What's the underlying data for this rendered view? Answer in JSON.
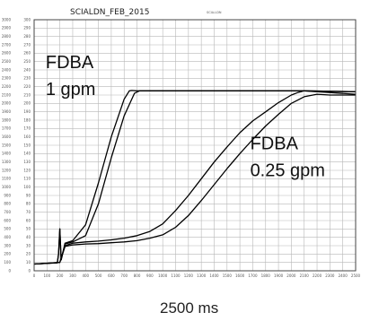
{
  "chart_data": {
    "type": "line",
    "title": "SCIALDN_FEB_2015",
    "legend_text": "SCIA-LDN",
    "xlim": [
      0,
      2500
    ],
    "ylim": [
      0,
      3000
    ],
    "x_ticks": [
      0,
      100,
      200,
      300,
      400,
      500,
      600,
      700,
      800,
      900,
      1000,
      1100,
      1200,
      1300,
      1400,
      1500,
      1600,
      1700,
      1800,
      1900,
      2000,
      2100,
      2200,
      2300,
      2400,
      2500
    ],
    "x_tick_labels": [
      "0",
      "100",
      "200",
      "300",
      "400",
      "500",
      "600",
      "700",
      "800",
      "900",
      "1000",
      "1100",
      "1200",
      "1300",
      "1400",
      "1500",
      "1600",
      "1700",
      "1800",
      "1900",
      "2000",
      "2100",
      "2200",
      "2300",
      "2400",
      "2500"
    ],
    "y_ticks": [
      0,
      100,
      200,
      300,
      400,
      500,
      600,
      700,
      800,
      900,
      1000,
      1100,
      1200,
      1300,
      1400,
      1500,
      1600,
      1700,
      1800,
      1900,
      2000,
      2100,
      2200,
      2300,
      2400,
      2500,
      2600,
      2700,
      2800,
      2900,
      3000
    ],
    "y_tick_labels_left": [
      "0",
      "100",
      "200",
      "300",
      "400",
      "500",
      "600",
      "700",
      "800",
      "900",
      "1000",
      "1100",
      "1200",
      "1300",
      "1400",
      "1500",
      "1600",
      "1700",
      "1800",
      "1900",
      "2000",
      "2100",
      "2200",
      "2300",
      "2400",
      "2500",
      "2600",
      "2700",
      "2800",
      "2900",
      "3000"
    ],
    "y_tick_labels_right": [
      "0",
      "10",
      "20",
      "30",
      "40",
      "50",
      "60",
      "70",
      "80",
      "90",
      "100",
      "110",
      "120",
      "130",
      "140",
      "150",
      "160",
      "170",
      "180",
      "190",
      "200",
      "210",
      "220",
      "230",
      "240",
      "250",
      "260",
      "270",
      "280",
      "290",
      "300"
    ],
    "x_unit_label": "2500 ms",
    "series": [
      {
        "x": [
          0,
          180,
          190,
          200,
          210,
          240,
          300,
          400,
          500,
          600,
          700,
          740,
          760,
          800,
          1000,
          1400,
          1800,
          2100,
          2300,
          2500
        ],
        "y": [
          80,
          95,
          200,
          500,
          130,
          330,
          360,
          550,
          1050,
          1600,
          2050,
          2150,
          2155,
          2150,
          2150,
          2150,
          2150,
          2150,
          2145,
          2140
        ]
      },
      {
        "x": [
          0,
          180,
          190,
          200,
          210,
          240,
          300,
          400,
          500,
          600,
          700,
          780,
          820,
          860,
          1000,
          1400,
          1800,
          2100,
          2300,
          2500
        ],
        "y": [
          80,
          95,
          200,
          500,
          130,
          320,
          345,
          420,
          800,
          1350,
          1850,
          2120,
          2150,
          2150,
          2150,
          2150,
          2150,
          2150,
          2145,
          2140
        ]
      },
      {
        "x": [
          0,
          200,
          240,
          300,
          400,
          500,
          600,
          700,
          800,
          900,
          1000,
          1100,
          1200,
          1300,
          1400,
          1500,
          1600,
          1700,
          1800,
          1900,
          2000,
          2050,
          2100,
          2300,
          2500
        ],
        "y": [
          80,
          100,
          300,
          330,
          345,
          355,
          370,
          390,
          420,
          470,
          560,
          720,
          900,
          1100,
          1300,
          1480,
          1650,
          1790,
          1900,
          2010,
          2100,
          2130,
          2150,
          2130,
          2110
        ]
      },
      {
        "x": [
          0,
          200,
          240,
          300,
          400,
          500,
          600,
          700,
          800,
          900,
          1000,
          1100,
          1200,
          1300,
          1400,
          1500,
          1600,
          1700,
          1800,
          1900,
          2000,
          2100,
          2200,
          2300,
          2500
        ],
        "y": [
          80,
          100,
          290,
          310,
          320,
          325,
          335,
          345,
          360,
          390,
          430,
          520,
          660,
          840,
          1030,
          1220,
          1400,
          1570,
          1730,
          1870,
          2000,
          2080,
          2110,
          2100,
          2100
        ]
      }
    ],
    "annotations": [
      {
        "text": "FDBA",
        "x": 90,
        "y": 2420,
        "size": "large"
      },
      {
        "text": "1 gpm",
        "x": 90,
        "y": 2100,
        "size": "large"
      },
      {
        "text": "FDBA",
        "x": 1680,
        "y": 1450,
        "size": "large"
      },
      {
        "text": "0.25 gpm",
        "x": 1680,
        "y": 1130,
        "size": "large"
      }
    ],
    "grid": true,
    "colors": {
      "line": "#000000",
      "grid": "#b8b8b8",
      "axis": "#444444"
    }
  }
}
